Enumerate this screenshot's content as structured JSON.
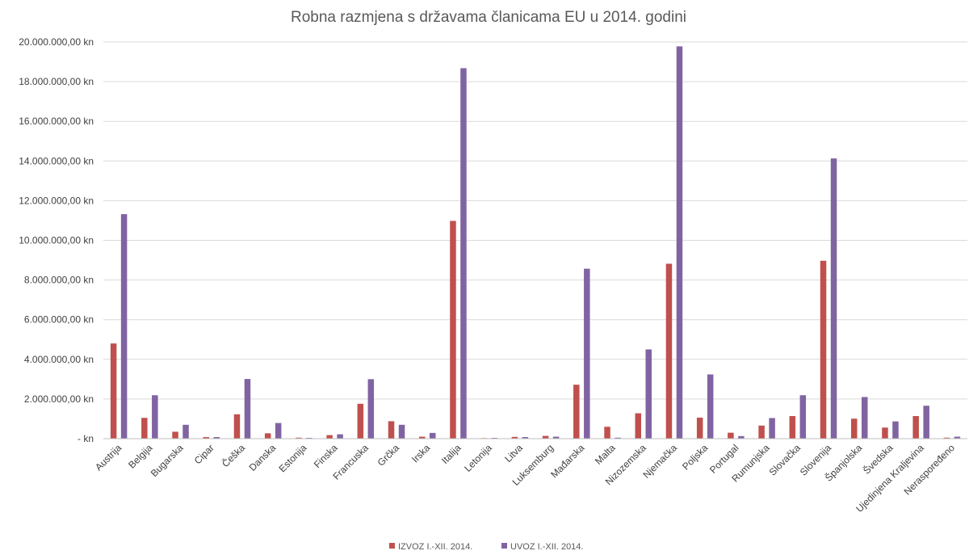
{
  "chart_data": {
    "type": "bar",
    "title": "Robna razmjena s državama članicama EU u 2014. godini",
    "categories": [
      "Austrija",
      "Belgija",
      "Bugarska",
      "Cipar",
      "Češka",
      "Danska",
      "Estonija",
      "Finska",
      "Francuska",
      "Grčka",
      "Irska",
      "Italija",
      "Letonija",
      "Litva",
      "Luksemburg",
      "Mađarska",
      "Malta",
      "Nizozemska",
      "Njemačka",
      "Poljska",
      "Portugal",
      "Rumunjska",
      "Slovačka",
      "Slovenija",
      "Španjolska",
      "Švedska",
      "Ujedinjena Kraljevina",
      "Neraspoređeno"
    ],
    "series": [
      {
        "name": "IZVOZ I.-XII. 2014.",
        "color": "#c0504d",
        "values": [
          4800000,
          1050000,
          350000,
          80000,
          1230000,
          270000,
          50000,
          180000,
          1760000,
          880000,
          100000,
          10980000,
          30000,
          90000,
          140000,
          2720000,
          600000,
          1280000,
          8820000,
          1060000,
          300000,
          660000,
          1140000,
          8970000,
          1010000,
          560000,
          1140000,
          50000
        ]
      },
      {
        "name": "UVOZ I.-XII. 2014.",
        "color": "#8064a2",
        "values": [
          11320000,
          2190000,
          700000,
          80000,
          3010000,
          790000,
          40000,
          220000,
          3000000,
          700000,
          290000,
          18680000,
          40000,
          80000,
          100000,
          8570000,
          50000,
          4500000,
          19780000,
          3240000,
          130000,
          1040000,
          2190000,
          14130000,
          2100000,
          870000,
          1660000,
          100000
        ]
      }
    ],
    "ylim": [
      0,
      20000000
    ],
    "yticks": [
      {
        "value": 0,
        "label": "-   kn"
      },
      {
        "value": 2000000,
        "label": "2.000.000,00 kn"
      },
      {
        "value": 4000000,
        "label": "4.000.000,00 kn"
      },
      {
        "value": 6000000,
        "label": "6.000.000,00 kn"
      },
      {
        "value": 8000000,
        "label": "8.000.000,00 kn"
      },
      {
        "value": 10000000,
        "label": "10.000.000,00 kn"
      },
      {
        "value": 12000000,
        "label": "12.000.000,00 kn"
      },
      {
        "value": 14000000,
        "label": "14.000.000,00 kn"
      },
      {
        "value": 16000000,
        "label": "16.000.000,00 kn"
      },
      {
        "value": 18000000,
        "label": "18.000.000,00 kn"
      },
      {
        "value": 20000000,
        "label": "20.000.000,00 kn"
      }
    ],
    "grid": true,
    "legend_position": "bottom"
  }
}
